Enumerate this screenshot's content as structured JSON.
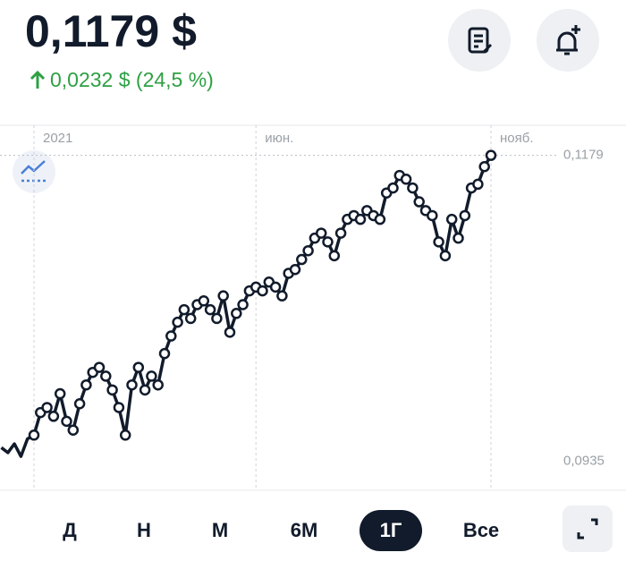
{
  "header": {
    "price": "0,1179 $",
    "change": "0,0232 $ (24,5 %)"
  },
  "chart_data": {
    "type": "line",
    "categories": [
      null,
      null,
      null,
      null,
      null,
      "2021",
      null,
      null,
      null,
      null,
      null,
      null,
      null,
      null,
      null,
      null,
      null,
      null,
      null,
      null,
      null,
      null,
      null,
      null,
      null,
      null,
      null,
      null,
      null,
      null,
      null,
      null,
      null,
      null,
      null,
      null,
      null,
      null,
      null,
      "июн.",
      null,
      null,
      null,
      null,
      null,
      null,
      null,
      null,
      null,
      null,
      null,
      null,
      null,
      null,
      null,
      null,
      null,
      null,
      null,
      null,
      null,
      null,
      null,
      null,
      null,
      null,
      null,
      null,
      null,
      null,
      null,
      null,
      null,
      null,
      null,
      "нояб."
    ],
    "values": [
      0.0946,
      0.0942,
      0.0949,
      0.0939,
      0.0953,
      0.0956,
      0.0974,
      0.0978,
      0.0971,
      0.0989,
      0.0967,
      0.096,
      0.0981,
      0.0996,
      0.1006,
      0.101,
      0.1003,
      0.0992,
      0.0978,
      0.0956,
      0.0996,
      0.101,
      0.0992,
      0.1003,
      0.0996,
      0.1021,
      0.1035,
      0.1046,
      0.1056,
      0.1049,
      0.106,
      0.1063,
      0.1056,
      0.1049,
      0.1067,
      0.1038,
      0.1053,
      0.106,
      0.1071,
      0.1074,
      0.1071,
      0.1078,
      0.1074,
      0.1067,
      0.1085,
      0.1088,
      0.1096,
      0.1103,
      0.1113,
      0.1117,
      0.111,
      0.1099,
      0.1117,
      0.1128,
      0.1131,
      0.1128,
      0.1135,
      0.1131,
      0.1128,
      0.1149,
      0.1153,
      0.1163,
      0.116,
      0.1153,
      0.1142,
      0.1135,
      0.1131,
      0.111,
      0.1099,
      0.1128,
      0.1113,
      0.1131,
      0.1153,
      0.1156,
      0.117,
      0.1179
    ],
    "color": "#111b2b",
    "ylim": [
      0.0912,
      0.1203
    ],
    "yticks": [
      {
        "value": 0.0935,
        "label": "0,0935"
      },
      {
        "value": 0.1179,
        "label": "0,1179"
      }
    ]
  },
  "periods": [
    "Д",
    "Н",
    "М",
    "6М",
    "1Г",
    "Все"
  ]
}
